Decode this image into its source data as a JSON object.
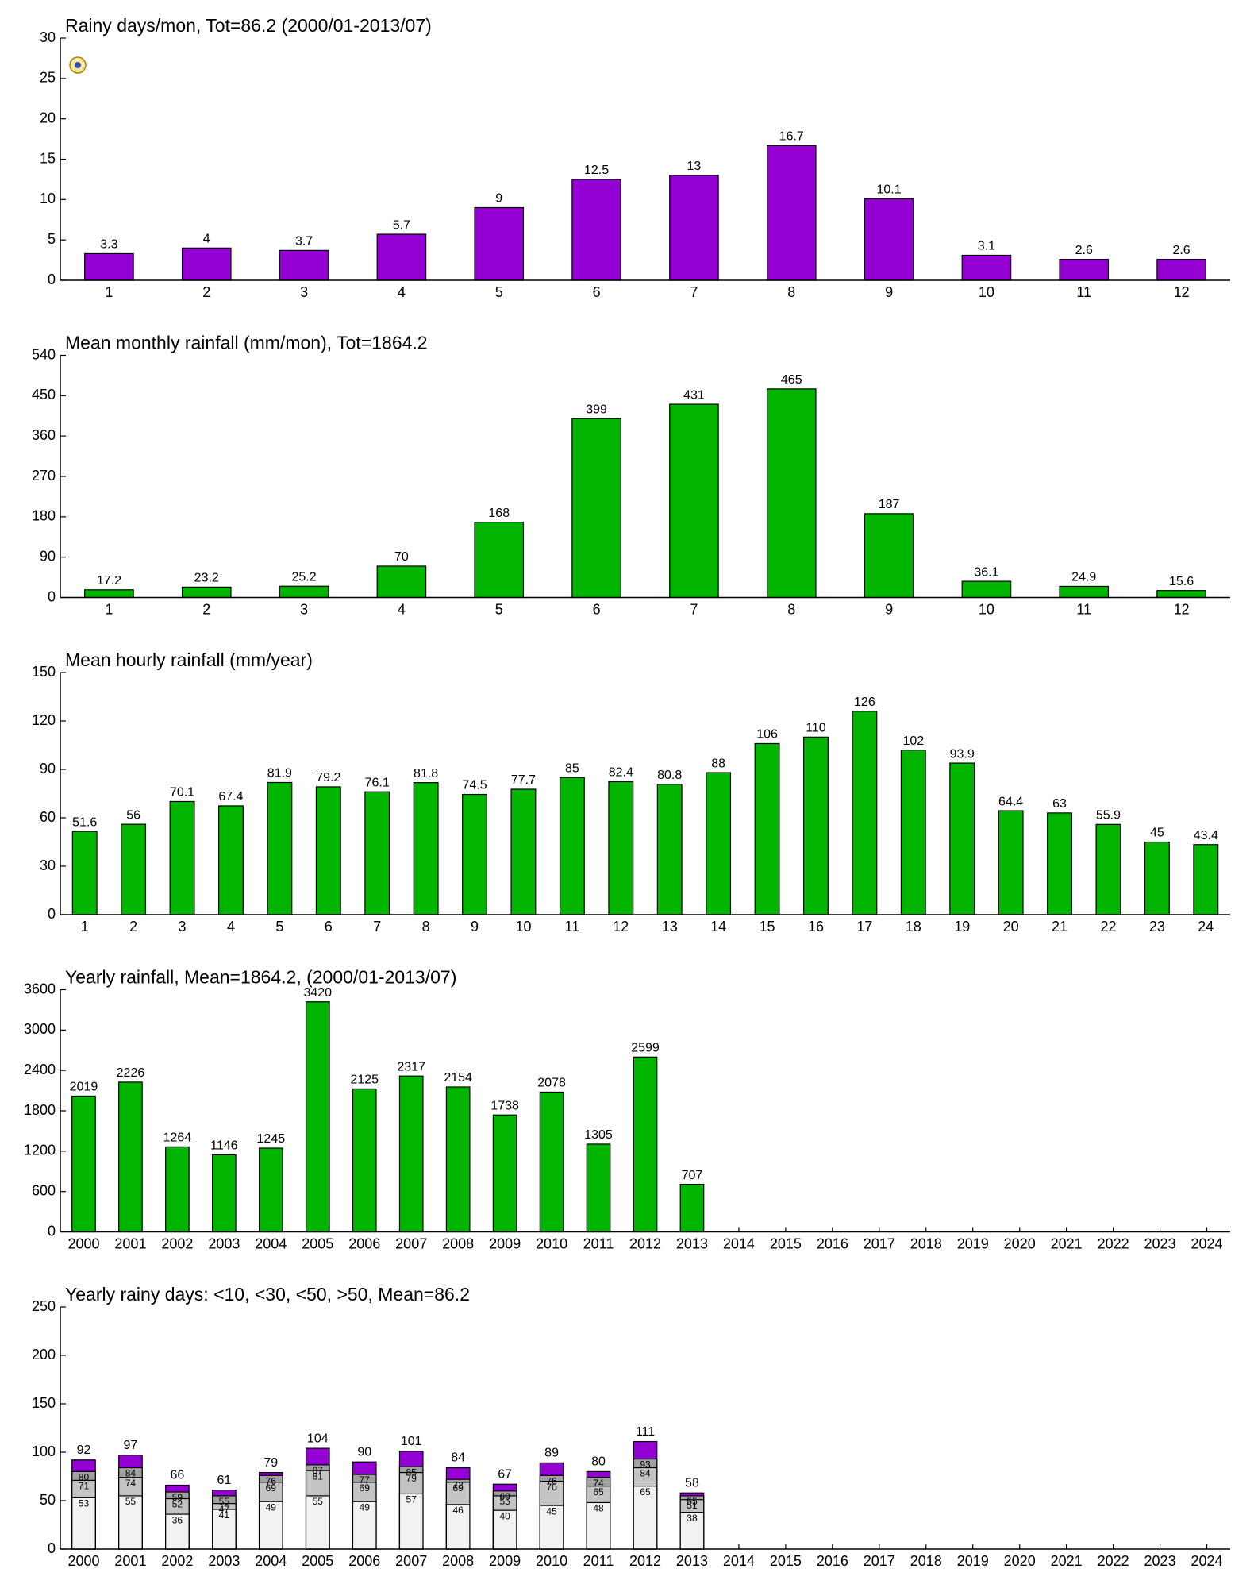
{
  "chart_data": [
    {
      "type": "bar",
      "title": "Rainy days/mon, Tot=86.2 (2000/01-2013/07)",
      "categories": [
        "1",
        "2",
        "3",
        "4",
        "5",
        "6",
        "7",
        "8",
        "9",
        "10",
        "11",
        "12"
      ],
      "values": [
        3.3,
        4,
        3.7,
        5.7,
        9,
        12.5,
        13,
        16.7,
        10.1,
        3.1,
        2.6,
        2.6
      ],
      "color": "#9400d3",
      "ylim": [
        0,
        30
      ],
      "yticks": [
        0,
        5,
        10,
        15,
        20,
        25,
        30
      ]
    },
    {
      "type": "bar",
      "title": "Mean monthly rainfall (mm/mon), Tot=1864.2",
      "categories": [
        "1",
        "2",
        "3",
        "4",
        "5",
        "6",
        "7",
        "8",
        "9",
        "10",
        "11",
        "12"
      ],
      "values": [
        17.2,
        23.2,
        25.2,
        70,
        168,
        399,
        431,
        465,
        187,
        36.1,
        24.9,
        15.6
      ],
      "color": "#00b400",
      "ylim": [
        0,
        540
      ],
      "yticks": [
        0,
        90,
        180,
        270,
        360,
        450,
        540
      ]
    },
    {
      "type": "bar",
      "title": "Mean hourly rainfall (mm/year)",
      "categories": [
        "1",
        "2",
        "3",
        "4",
        "5",
        "6",
        "7",
        "8",
        "9",
        "10",
        "11",
        "12",
        "13",
        "14",
        "15",
        "16",
        "17",
        "18",
        "19",
        "20",
        "21",
        "22",
        "23",
        "24"
      ],
      "values": [
        51.6,
        56,
        70.1,
        67.4,
        81.9,
        79.2,
        76.1,
        81.8,
        74.5,
        77.7,
        85,
        82.4,
        80.8,
        88,
        106,
        110,
        126,
        102,
        93.9,
        64.4,
        63,
        55.9,
        45,
        43.4
      ],
      "color": "#00b400",
      "ylim": [
        0,
        150
      ],
      "yticks": [
        0,
        30,
        60,
        90,
        120,
        150
      ]
    },
    {
      "type": "bar",
      "title": "Yearly rainfall, Mean=1864.2, (2000/01-2013/07)",
      "categories": [
        "2000",
        "2001",
        "2002",
        "2003",
        "2004",
        "2005",
        "2006",
        "2007",
        "2008",
        "2009",
        "2010",
        "2011",
        "2012",
        "2013",
        "2014",
        "2015",
        "2016",
        "2017",
        "2018",
        "2019",
        "2020",
        "2021",
        "2022",
        "2023",
        "2024"
      ],
      "values": [
        2019,
        2226,
        1264,
        1146,
        1245,
        3420,
        2125,
        2317,
        2154,
        1738,
        2078,
        1305,
        2599,
        707,
        null,
        null,
        null,
        null,
        null,
        null,
        null,
        null,
        null,
        null,
        null
      ],
      "color": "#00b400",
      "ylim": [
        0,
        3600
      ],
      "yticks": [
        0,
        600,
        1200,
        1800,
        2400,
        3000,
        3600
      ]
    },
    {
      "type": "bar",
      "title": "Yearly rainy days: <10, <30, <50, >50, Mean=86.2",
      "categories": [
        "2000",
        "2001",
        "2002",
        "2003",
        "2004",
        "2005",
        "2006",
        "2007",
        "2008",
        "2009",
        "2010",
        "2011",
        "2012",
        "2013",
        "2014",
        "2015",
        "2016",
        "2017",
        "2018",
        "2019",
        "2020",
        "2021",
        "2022",
        "2023",
        "2024"
      ],
      "series": [
        {
          "color": "#9400d3",
          "values": [
            92,
            97,
            66,
            61,
            79,
            104,
            90,
            101,
            84,
            67,
            89,
            80,
            111,
            58,
            null,
            null,
            null,
            null,
            null,
            null,
            null,
            null,
            null,
            null,
            null
          ]
        },
        {
          "color": "#a0a0a0",
          "values": [
            80,
            84,
            59,
            55,
            76,
            87,
            77,
            85,
            72,
            60,
            76,
            74,
            93,
            55,
            null,
            null,
            null,
            null,
            null,
            null,
            null,
            null,
            null,
            null,
            null
          ]
        },
        {
          "color": "#c4c4c4",
          "values": [
            71,
            74,
            52,
            47,
            69,
            81,
            69,
            79,
            69,
            55,
            70,
            65,
            84,
            51,
            null,
            null,
            null,
            null,
            null,
            null,
            null,
            null,
            null,
            null,
            null
          ]
        },
        {
          "color": "#f2f2f2",
          "values": [
            53,
            55,
            36,
            41,
            49,
            55,
            49,
            57,
            46,
            40,
            45,
            48,
            65,
            38,
            null,
            null,
            null,
            null,
            null,
            null,
            null,
            null,
            null,
            null,
            null
          ]
        }
      ],
      "ylim": [
        0,
        250
      ],
      "yticks": [
        0,
        50,
        100,
        150,
        200,
        250
      ]
    }
  ]
}
